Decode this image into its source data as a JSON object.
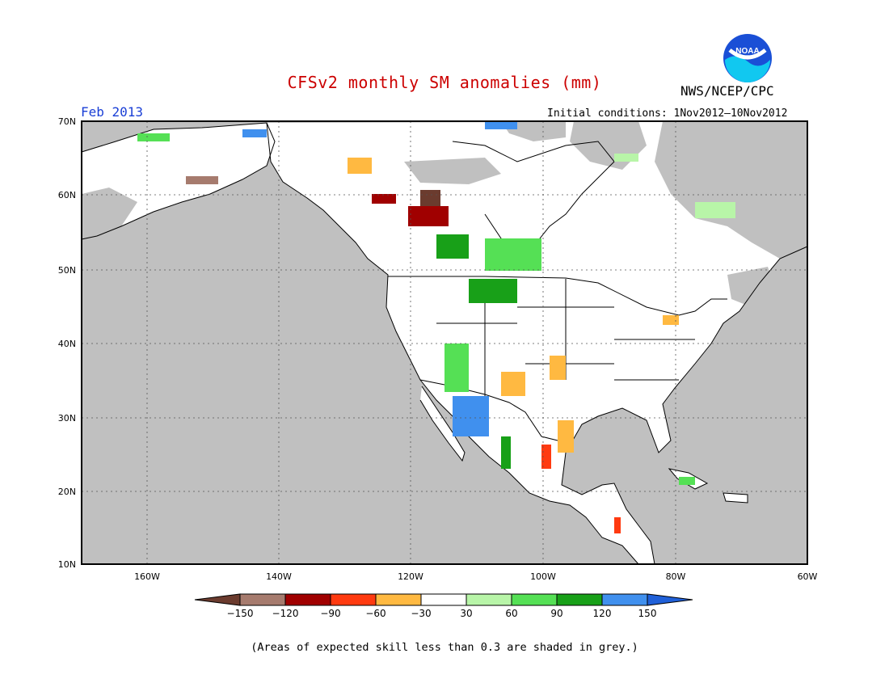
{
  "header": {
    "title": "CFSv2 monthly SM anomalies (mm)",
    "agency": "NWS/NCEP/CPC",
    "logo_text": "NOAA",
    "month": "Feb 2013",
    "initial_conditions": "Initial conditions: 1Nov2012–10Nov2012"
  },
  "map": {
    "lat_labels": [
      "70N",
      "60N",
      "50N",
      "40N",
      "30N",
      "20N",
      "10N"
    ],
    "lon_labels": [
      "160W",
      "140W",
      "120W",
      "100W",
      "80W",
      "60W"
    ],
    "extent": {
      "lon_min": -172,
      "lon_max": -60,
      "lat_min": 10,
      "lat_max": 70
    },
    "colors": {
      "ocean": "#c0c0c0",
      "land": "#ffffff",
      "low_skill": "#c0c0c0"
    }
  },
  "colorbar": {
    "labels": [
      "−150",
      "−120",
      "−90",
      "−60",
      "−30",
      "30",
      "60",
      "90",
      "120",
      "150"
    ],
    "colors": [
      "#6b3b2e",
      "#a67b6e",
      "#a00000",
      "#ff3a10",
      "#ffb941",
      "#ffffff",
      "#b8f5a8",
      "#55e055",
      "#18a018",
      "#4090ee",
      "#2060d8"
    ]
  },
  "footnote": "(Areas of expected skill less than 0.3 are shaded in grey.)"
}
